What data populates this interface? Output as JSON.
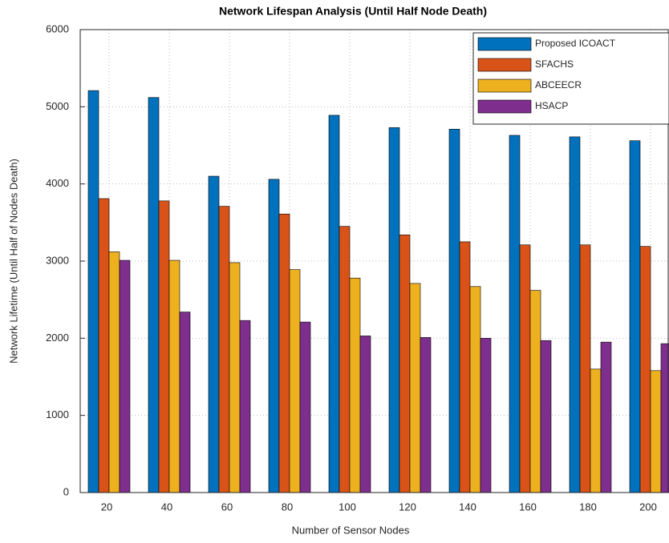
{
  "chart_data": {
    "type": "bar",
    "title": "Network Lifespan Analysis (Until Half Node Death)",
    "x_label": "Number of Sensor Nodes",
    "y_label": "Network Lifetime (Until Half of Nodes Death)",
    "categories": [
      "20",
      "40",
      "60",
      "80",
      "100",
      "120",
      "140",
      "160",
      "180",
      "200"
    ],
    "series": [
      {
        "name": "Proposed ICOACT",
        "color": "#0072BD",
        "values": [
          5210,
          5120,
          4100,
          4060,
          4890,
          4730,
          4710,
          4630,
          4610,
          4560
        ]
      },
      {
        "name": "SFACHS",
        "color": "#D95319",
        "values": [
          3810,
          3780,
          3710,
          3610,
          3450,
          3340,
          3250,
          3210,
          3210,
          3190
        ]
      },
      {
        "name": "ABCEECR",
        "color": "#EDB120",
        "values": [
          3120,
          3010,
          2980,
          2890,
          2780,
          2710,
          2670,
          2620,
          1600,
          1580
        ]
      },
      {
        "name": "HSACP",
        "color": "#7E2F8E",
        "values": [
          3010,
          2340,
          2230,
          2210,
          2030,
          2010,
          2000,
          1970,
          1950,
          1930
        ]
      }
    ],
    "ylim": [
      0,
      6000
    ],
    "yticks": [
      0,
      1000,
      2000,
      3000,
      4000,
      5000,
      6000
    ],
    "grid": true,
    "legend": "northeast"
  }
}
